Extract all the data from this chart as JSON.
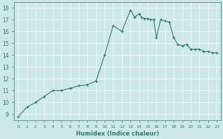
{
  "x": [
    0,
    1,
    2,
    3,
    4,
    5,
    6,
    7,
    8,
    9,
    10,
    11,
    12,
    13,
    13.5,
    14,
    14.3,
    14.6,
    15,
    15.3,
    15.7,
    16,
    16.5,
    17,
    17.5,
    18,
    18.5,
    19,
    19.5,
    20,
    20.5,
    21,
    21.5,
    22,
    22.5,
    23
  ],
  "y": [
    8.8,
    9.6,
    10.0,
    10.5,
    11.0,
    11.0,
    11.2,
    11.4,
    11.5,
    11.8,
    14.0,
    16.5,
    16.0,
    17.8,
    17.2,
    17.5,
    17.2,
    17.1,
    17.1,
    17.0,
    17.0,
    15.5,
    17.0,
    16.9,
    16.8,
    15.5,
    14.9,
    14.8,
    14.9,
    14.5,
    14.5,
    14.5,
    14.3,
    14.3,
    14.2,
    14.2
  ],
  "xlabel": "Humidex (Indice chaleur)",
  "xlim": [
    -0.5,
    23.5
  ],
  "ylim": [
    8.5,
    18.5
  ],
  "yticks": [
    9,
    10,
    11,
    12,
    13,
    14,
    15,
    16,
    17,
    18
  ],
  "xticks": [
    0,
    1,
    2,
    3,
    4,
    5,
    6,
    7,
    8,
    9,
    10,
    11,
    12,
    13,
    14,
    15,
    16,
    17,
    18,
    19,
    20,
    21,
    22,
    23
  ],
  "line_color": "#2e7d6e",
  "marker": "+",
  "bg_color": "#cce8e8",
  "grid_color": "#ffffff",
  "label_color": "#2e7d6e"
}
